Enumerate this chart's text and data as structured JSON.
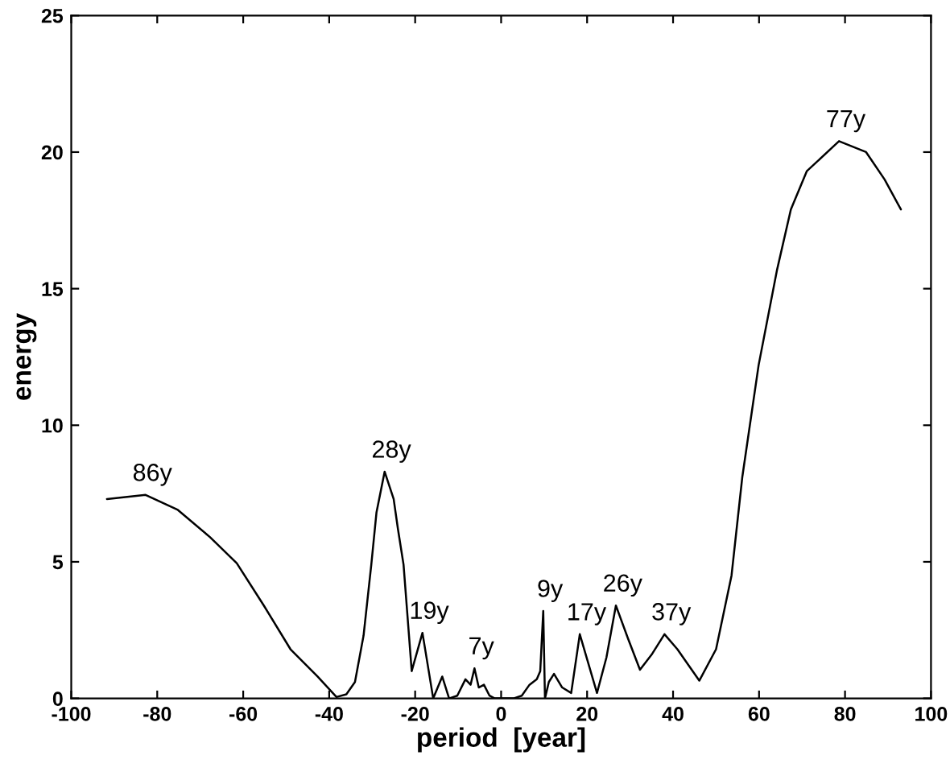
{
  "chart_data": {
    "type": "line",
    "xlabel": "period  [year]",
    "ylabel": "energy",
    "series": [
      {
        "color": "#000000",
        "x": [
          -91.7,
          -82.7,
          -75.2,
          -67.7,
          -61.5,
          -55.2,
          -49,
          -42.7,
          -38.3,
          -36,
          -34,
          -32,
          -30.2,
          -29,
          -27.1,
          -25,
          -24,
          -22.7,
          -20.8,
          -18.3,
          -15.8,
          -13.7,
          -12.1,
          -10.2,
          -8.3,
          -7.1,
          -6.2,
          -5.2,
          -4,
          -2.7,
          -1.5,
          2.9,
          4.8,
          6.6,
          8.3,
          9.1,
          9.8,
          10.2,
          11.1,
          12.3,
          14.2,
          16.3,
          18.3,
          22.3,
          24.5,
          26.7,
          29.5,
          32.3,
          35,
          38,
          41,
          46.1,
          50,
          53.6,
          56.1,
          59.9,
          64.2,
          67.4,
          71.1,
          78.6,
          84.9,
          89.2,
          93
        ],
        "values": [
          7.3,
          7.45,
          6.9,
          5.9,
          4.95,
          3.4,
          1.8,
          0.8,
          0.05,
          0.15,
          0.6,
          2.3,
          4.9,
          6.8,
          8.3,
          7.3,
          6.2,
          4.9,
          1.0,
          2.4,
          0,
          0.8,
          0,
          0.1,
          0.7,
          0.5,
          1.1,
          0.4,
          0.5,
          0.1,
          0,
          0,
          0.1,
          0.5,
          0.7,
          1.0,
          3.2,
          0,
          0.6,
          0.9,
          0.4,
          0.2,
          2.35,
          0.2,
          1.5,
          3.4,
          2.2,
          1.05,
          1.6,
          2.35,
          1.8,
          0.65,
          1.8,
          4.5,
          8.1,
          12.2,
          15.7,
          17.9,
          19.3,
          20.4,
          20.0,
          19.0,
          17.9
        ]
      }
    ],
    "xlim": [
      -100,
      100
    ],
    "ylim": [
      0,
      25
    ],
    "xticks": [
      -100,
      -80,
      -60,
      -40,
      -20,
      0,
      20,
      40,
      60,
      80,
      100
    ],
    "yticks": [
      0,
      5,
      10,
      15,
      20,
      25
    ],
    "annotations": [
      {
        "text": "86y",
        "x": -82.7,
        "y": 7.45
      },
      {
        "text": "28y",
        "x": -27.1,
        "y": 8.3
      },
      {
        "text": "19y",
        "x": -18.3,
        "y": 2.4
      },
      {
        "text": "7y",
        "x": -6.2,
        "y": 1.1
      },
      {
        "text": "9y",
        "x": 9.8,
        "y": 3.2
      },
      {
        "text": "17y",
        "x": 18.3,
        "y": 2.35
      },
      {
        "text": "26y",
        "x": 26.7,
        "y": 3.4
      },
      {
        "text": "37y",
        "x": 38,
        "y": 2.35
      },
      {
        "text": "77y",
        "x": 78.6,
        "y": 20.4
      }
    ]
  }
}
